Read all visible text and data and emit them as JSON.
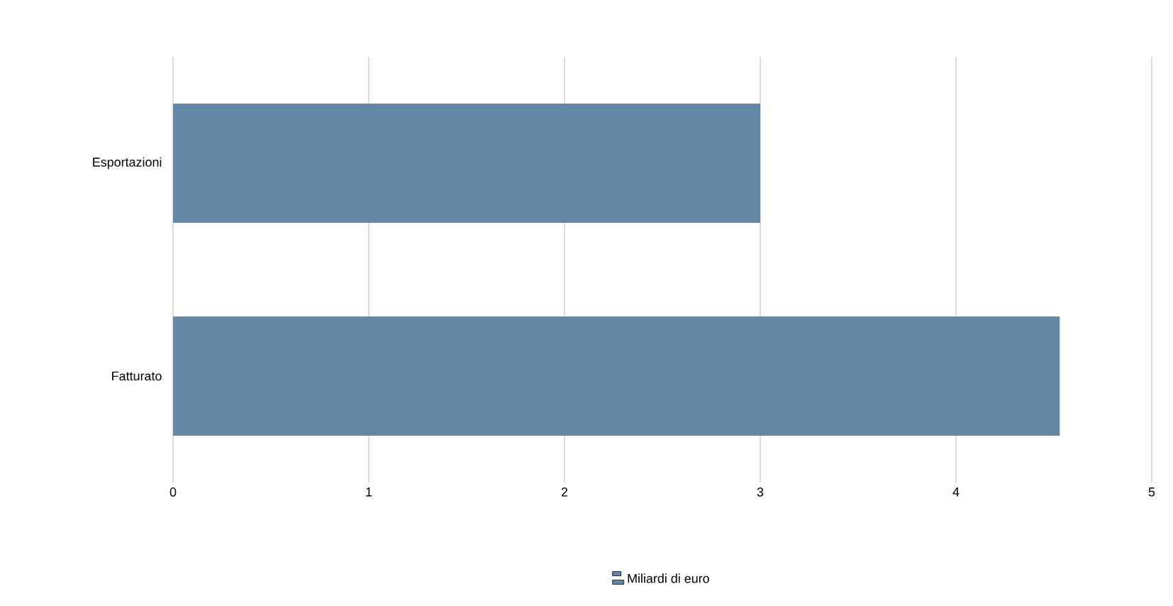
{
  "chart_data": {
    "type": "bar",
    "orientation": "horizontal",
    "categories": [
      "Esportazioni",
      "Fatturato"
    ],
    "series": [
      {
        "name": "Miliardi di euro",
        "color": "#6487a5",
        "values": [
          3.0,
          4.53
        ]
      }
    ],
    "xlim": [
      0,
      5
    ],
    "xticks": [
      0,
      1,
      2,
      3,
      4,
      5
    ],
    "grid": "x",
    "legend": "bottom"
  }
}
